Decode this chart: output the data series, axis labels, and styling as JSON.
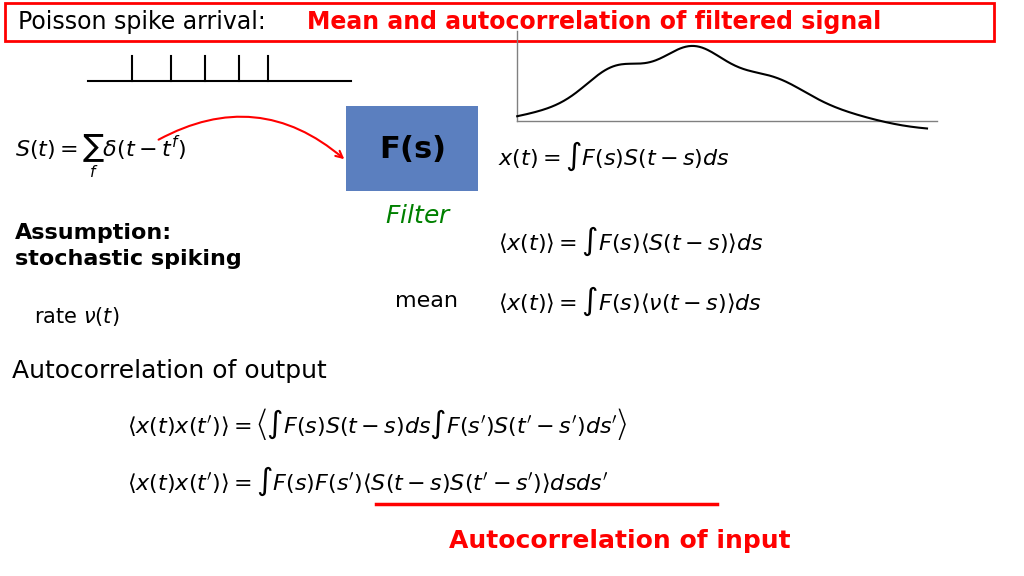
{
  "title_normal": "Poisson spike arrival: ",
  "title_bold_red": "Mean and autocorrelation of filtered signal",
  "background_color": "#ffffff",
  "title_box_color": "#ffffff",
  "title_border_color": "#ff0000",
  "filter_box_color": "#5b7fbf",
  "filter_text": "F(s)",
  "filter_label": "Filter",
  "assumption_text": "Assumption:\nstochastic spiking",
  "rate_text": "rate ν(t)",
  "mean_label": "mean",
  "eq1": "S(t) = \\sum_f \\delta(t-t^f)",
  "eq2": "x(t) = \\int F(s)S(t-s)ds",
  "eq3": "\\langle x(t)\\rangle = \\int F(s)\\langle S(t-s)\\rangle ds",
  "eq4": "\\langle x(t)\\rangle = \\int F(s)\\langle \\nu(t-s)\\rangle ds",
  "eq5": "\\langle x(t)x(t^{\\prime})\\rangle = \\left\\langle \\int F(s)S(t-s)ds\\int F(s^{\\prime})S(t^{\\prime}-s^{\\prime})ds^{\\prime}\\right\\rangle",
  "eq6": "\\langle x(t)x(t^{\\prime})\\rangle = \\int F(s)F(s^{\\prime})\\left\\langle S(t-s)S(t^{\\prime}-s^{\\prime})\\right\\rangle dsds^{\\prime}",
  "autocorr_output_label": "Autocorrelation of output",
  "autocorr_input_label": "Autocorrelation of input",
  "red_color": "#ff0000",
  "green_color": "#008000",
  "black_color": "#000000",
  "blue_box_text_color": "#000000"
}
